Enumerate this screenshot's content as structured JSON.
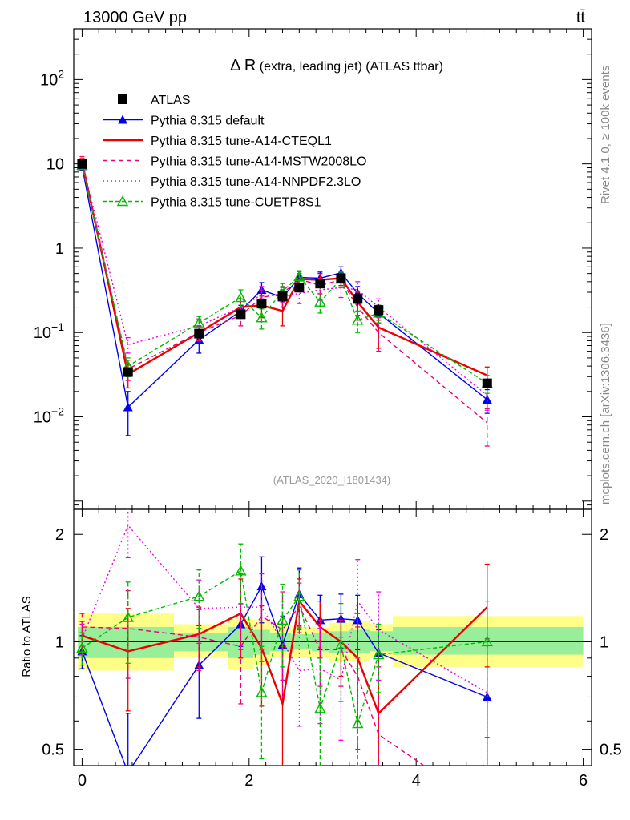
{
  "header": {
    "energy_label": "13000 GeV pp",
    "process_label": "tt̄"
  },
  "side_labels": {
    "rivet": "Rivet 4.1.0, ≥ 100k events",
    "mcplots": "mcplots.cern.ch [arXiv:1306.3436]"
  },
  "chart_data": [
    {
      "type": "line",
      "title_main": "Δ R",
      "title_rest": " (extra, leading jet) (ATLAS ttbar)",
      "analysis_id": "(ATLAS_2020_I1801434)",
      "yscale": "log",
      "xlim": [
        -0.1,
        6.1
      ],
      "ylim": [
        0.0008,
        400
      ],
      "y_ticks": [
        {
          "value": 0.01,
          "label": "10",
          "exp": "−2"
        },
        {
          "value": 0.1,
          "label": "10",
          "exp": "−1"
        },
        {
          "value": 1,
          "label": "1",
          "exp": ""
        },
        {
          "value": 10,
          "label": "10",
          "exp": ""
        },
        {
          "value": 100,
          "label": "10",
          "exp": "2"
        }
      ],
      "legend": [
        {
          "label": "ATLAS",
          "color": "#000000",
          "dash": "",
          "marker": "square"
        },
        {
          "label": "Pythia 8.315 default",
          "color": "#0000ee",
          "dash": "",
          "marker": "triangle"
        },
        {
          "label": "Pythia 8.315 tune-A14-CTEQL1",
          "color": "#ee0000",
          "dash": "",
          "marker": ""
        },
        {
          "label": "Pythia 8.315 tune-A14-MSTW2008LO",
          "color": "#ee0077",
          "dash": "6,4",
          "marker": ""
        },
        {
          "label": "Pythia 8.315 tune-A14-NNPDF2.3LO",
          "color": "#ee00ee",
          "dash": "2,3",
          "marker": ""
        },
        {
          "label": "Pythia 8.315 tune-CUETP8S1",
          "color": "#00bb00",
          "dash": "5,3",
          "marker": "triangle-open"
        }
      ],
      "data": {
        "name": "ATLAS",
        "x": [
          0.0,
          0.55,
          1.4,
          1.9,
          2.15,
          2.4,
          2.6,
          2.85,
          3.1,
          3.3,
          3.55,
          4.85
        ],
        "y": [
          10.0,
          0.034,
          0.097,
          0.165,
          0.22,
          0.27,
          0.34,
          0.38,
          0.44,
          0.25,
          0.185,
          0.025
        ],
        "err": [
          1.0,
          0.004,
          0.01,
          0.02,
          0.03,
          0.04,
          0.04,
          0.05,
          0.06,
          0.04,
          0.03,
          0.004
        ]
      },
      "series": [
        {
          "name": "Pythia 8.315 default",
          "color": "#0000ee",
          "dash": "",
          "marker": "triangle",
          "x": [
            0.0,
            0.55,
            1.4,
            1.9,
            2.15,
            2.4,
            2.6,
            2.85,
            3.1,
            3.3,
            3.55,
            4.85
          ],
          "y": [
            9.4,
            0.013,
            0.082,
            0.18,
            0.32,
            0.26,
            0.45,
            0.44,
            0.51,
            0.29,
            0.17,
            0.016
          ],
          "err": [
            1.0,
            0.007,
            0.025,
            0.03,
            0.07,
            0.06,
            0.08,
            0.08,
            0.09,
            0.06,
            0.04,
            0.005
          ]
        },
        {
          "name": "Pythia 8.315 tune-A14-CTEQL1",
          "color": "#ee0000",
          "dash": "",
          "marker": "",
          "x": [
            0.0,
            0.55,
            1.4,
            1.9,
            2.15,
            2.4,
            2.6,
            2.85,
            3.1,
            3.3,
            3.55,
            4.85
          ],
          "y": [
            10.5,
            0.032,
            0.1,
            0.2,
            0.21,
            0.18,
            0.43,
            0.42,
            0.44,
            0.23,
            0.115,
            0.031
          ],
          "err": [
            1.1,
            0.01,
            0.02,
            0.05,
            0.06,
            0.06,
            0.07,
            0.08,
            0.08,
            0.07,
            0.05,
            0.008
          ]
        },
        {
          "name": "Pythia 8.315 tune-A14-MSTW2008LO",
          "color": "#ee0077",
          "dash": "6,4",
          "marker": "",
          "x": [
            0.0,
            0.55,
            1.4,
            1.9,
            2.15,
            2.4,
            2.6,
            2.85,
            3.1,
            3.3,
            3.55,
            4.85
          ],
          "y": [
            11.0,
            0.037,
            0.1,
            0.16,
            0.26,
            0.29,
            0.43,
            0.36,
            0.42,
            0.2,
            0.1,
            0.0085
          ],
          "err": [
            1.2,
            0.01,
            0.02,
            0.04,
            0.06,
            0.06,
            0.07,
            0.08,
            0.08,
            0.06,
            0.04,
            0.004
          ]
        },
        {
          "name": "Pythia 8.315 tune-A14-NNPDF2.3LO",
          "color": "#ee00ee",
          "dash": "2,3",
          "marker": "",
          "x": [
            0.0,
            0.55,
            1.4,
            1.9,
            2.15,
            2.4,
            2.6,
            2.85,
            3.1,
            3.3,
            3.55,
            4.85
          ],
          "y": [
            10.2,
            0.072,
            0.12,
            0.2,
            0.28,
            0.27,
            0.29,
            0.32,
            0.34,
            0.32,
            0.2,
            0.018
          ],
          "err": [
            1.1,
            0.015,
            0.025,
            0.05,
            0.07,
            0.07,
            0.07,
            0.08,
            0.08,
            0.08,
            0.05,
            0.006
          ]
        },
        {
          "name": "Pythia 8.315 tune-CUETP8S1",
          "color": "#00bb00",
          "dash": "5,3",
          "marker": "triangle-open",
          "x": [
            0.0,
            0.55,
            1.4,
            1.9,
            2.15,
            2.4,
            2.6,
            2.85,
            3.1,
            3.3,
            3.55,
            4.85
          ],
          "y": [
            9.6,
            0.04,
            0.13,
            0.26,
            0.15,
            0.31,
            0.46,
            0.23,
            0.43,
            0.14,
            0.17,
            0.025
          ],
          "err": [
            1.0,
            0.01,
            0.025,
            0.06,
            0.04,
            0.07,
            0.08,
            0.06,
            0.09,
            0.04,
            0.04,
            0.006
          ]
        }
      ]
    },
    {
      "type": "line",
      "ylabel": "Ratio to ATLAS",
      "yscale": "log",
      "xlim": [
        -0.1,
        6.1
      ],
      "ylim": [
        0.45,
        2.35
      ],
      "x_ticks": [
        0,
        2,
        4,
        6
      ],
      "y_ticks": [
        0.5,
        1,
        2
      ],
      "y_tick_labels": [
        "0.5",
        "1",
        "2"
      ],
      "reference": 1,
      "bands": [
        {
          "x_lo": -0.05,
          "x_hi": 1.1,
          "stat_lo": 0.9,
          "stat_hi": 1.1,
          "tot_lo": 0.83,
          "tot_hi": 1.2
        },
        {
          "x_lo": 1.1,
          "x_hi": 1.75,
          "stat_lo": 0.94,
          "stat_hi": 1.06,
          "tot_lo": 0.9,
          "tot_hi": 1.12
        },
        {
          "x_lo": 1.75,
          "x_hi": 2.05,
          "stat_lo": 0.9,
          "stat_hi": 1.1,
          "tot_lo": 0.84,
          "tot_hi": 1.16
        },
        {
          "x_lo": 2.05,
          "x_hi": 2.25,
          "stat_lo": 0.92,
          "stat_hi": 1.08,
          "tot_lo": 0.86,
          "tot_hi": 1.15
        },
        {
          "x_lo": 2.25,
          "x_hi": 2.5,
          "stat_lo": 0.94,
          "stat_hi": 1.06,
          "tot_lo": 0.9,
          "tot_hi": 1.12
        },
        {
          "x_lo": 2.5,
          "x_hi": 2.75,
          "stat_lo": 0.95,
          "stat_hi": 1.05,
          "tot_lo": 0.9,
          "tot_hi": 1.1
        },
        {
          "x_lo": 2.75,
          "x_hi": 2.95,
          "stat_lo": 0.94,
          "stat_hi": 1.06,
          "tot_lo": 0.9,
          "tot_hi": 1.1
        },
        {
          "x_lo": 2.95,
          "x_hi": 3.2,
          "stat_lo": 0.93,
          "stat_hi": 1.07,
          "tot_lo": 0.88,
          "tot_hi": 1.13
        },
        {
          "x_lo": 3.2,
          "x_hi": 3.45,
          "stat_lo": 0.93,
          "stat_hi": 1.08,
          "tot_lo": 0.88,
          "tot_hi": 1.14
        },
        {
          "x_lo": 3.45,
          "x_hi": 3.72,
          "stat_lo": 0.94,
          "stat_hi": 1.07,
          "tot_lo": 0.9,
          "tot_hi": 1.12
        },
        {
          "x_lo": 3.72,
          "x_hi": 6.0,
          "stat_lo": 0.92,
          "stat_hi": 1.1,
          "tot_lo": 0.85,
          "tot_hi": 1.18
        }
      ],
      "series": [
        {
          "name": "Pythia 8.315 default",
          "color": "#0000ee",
          "dash": "",
          "marker": "triangle",
          "x": [
            0.0,
            0.55,
            1.4,
            1.9,
            2.15,
            2.4,
            2.6,
            2.85,
            3.1,
            3.3,
            3.55,
            4.85
          ],
          "y": [
            0.94,
            0.43,
            0.86,
            1.12,
            1.43,
            0.98,
            1.36,
            1.15,
            1.16,
            1.15,
            0.93,
            0.7
          ],
          "err": [
            0.1,
            0.2,
            0.25,
            0.15,
            0.3,
            0.2,
            0.25,
            0.2,
            0.2,
            0.2,
            0.15,
            0.3
          ]
        },
        {
          "name": "Pythia 8.315 tune-A14-CTEQL1",
          "color": "#ee0000",
          "dash": "",
          "marker": "",
          "x": [
            0.0,
            0.55,
            1.4,
            1.9,
            2.15,
            2.4,
            2.6,
            2.85,
            3.1,
            3.3,
            3.55,
            4.85
          ],
          "y": [
            1.04,
            0.94,
            1.05,
            1.2,
            0.96,
            0.67,
            1.3,
            1.1,
            1.0,
            0.9,
            0.63,
            1.25
          ],
          "err": [
            0.1,
            0.3,
            0.2,
            0.3,
            0.3,
            0.3,
            0.2,
            0.2,
            0.2,
            0.3,
            0.3,
            0.4
          ]
        },
        {
          "name": "Pythia 8.315 tune-A14-MSTW2008LO",
          "color": "#ee0077",
          "dash": "6,4",
          "marker": "",
          "x": [
            0.0,
            0.55,
            1.4,
            1.9,
            2.15,
            2.4,
            2.6,
            2.85,
            3.1,
            3.3,
            3.55,
            4.85
          ],
          "y": [
            1.1,
            1.09,
            1.03,
            0.97,
            1.18,
            1.08,
            1.26,
            0.95,
            0.95,
            0.8,
            0.55,
            0.34
          ],
          "err": [
            0.1,
            0.3,
            0.2,
            0.3,
            0.3,
            0.3,
            0.2,
            0.2,
            0.2,
            0.3,
            0.3,
            0.2
          ]
        },
        {
          "name": "Pythia 8.315 tune-A14-NNPDF2.3LO",
          "color": "#ee00ee",
          "dash": "2,3",
          "marker": "",
          "x": [
            0.0,
            0.55,
            1.4,
            1.9,
            2.15,
            2.4,
            2.6,
            2.85,
            3.1,
            3.3,
            3.55,
            4.85
          ],
          "y": [
            1.02,
            2.12,
            1.24,
            1.25,
            1.25,
            1.0,
            0.83,
            0.84,
            0.78,
            1.3,
            1.08,
            0.72
          ],
          "err": [
            0.1,
            0.4,
            0.25,
            0.3,
            0.3,
            0.3,
            0.25,
            0.25,
            0.25,
            0.4,
            0.3,
            0.3
          ]
        },
        {
          "name": "Pythia 8.315 tune-CUETP8S1",
          "color": "#00bb00",
          "dash": "5,3",
          "marker": "triangle-open",
          "x": [
            0.0,
            0.55,
            1.4,
            1.9,
            2.15,
            2.4,
            2.6,
            2.85,
            3.1,
            3.3,
            3.55,
            4.85
          ],
          "y": [
            0.96,
            1.17,
            1.34,
            1.58,
            0.72,
            1.15,
            1.34,
            0.65,
            0.98,
            0.59,
            0.92,
            1.0
          ],
          "err": [
            0.1,
            0.3,
            0.25,
            0.3,
            0.25,
            0.3,
            0.25,
            0.25,
            0.3,
            0.25,
            0.2,
            0.3
          ]
        }
      ]
    }
  ]
}
